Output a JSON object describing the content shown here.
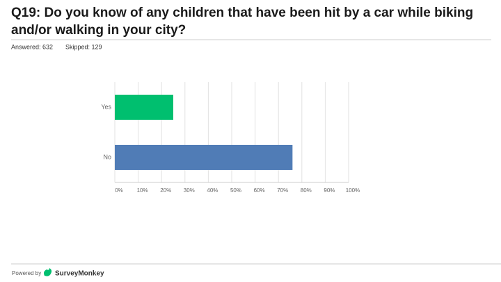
{
  "chart_data": {
    "type": "hbar",
    "title": "Q19: Do you know of any children that have been hit by a car while biking and/or walking in your city?",
    "answered": "Answered: 632",
    "skipped": "Skipped: 129",
    "categories": [
      "Yes",
      "No"
    ],
    "values": [
      25,
      76
    ],
    "colors": [
      "#00bf6f",
      "#507cb6"
    ],
    "xlim": [
      0,
      100
    ],
    "xticks": [
      {
        "value": 0,
        "label": "0%"
      },
      {
        "value": 10,
        "label": "10%"
      },
      {
        "value": 20,
        "label": "20%"
      },
      {
        "value": 30,
        "label": "30%"
      },
      {
        "value": 40,
        "label": "40%"
      },
      {
        "value": 50,
        "label": "50%"
      },
      {
        "value": 60,
        "label": "60%"
      },
      {
        "value": 70,
        "label": "70%"
      },
      {
        "value": 80,
        "label": "80%"
      },
      {
        "value": 90,
        "label": "90%"
      },
      {
        "value": 100,
        "label": "100%"
      }
    ],
    "grid": true
  },
  "footer": {
    "powered_by": "Powered by",
    "brand": "SurveyMonkey"
  }
}
